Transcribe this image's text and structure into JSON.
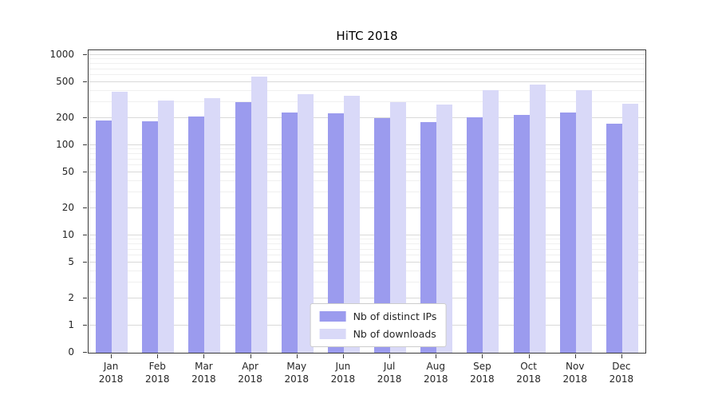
{
  "title": "HiTC 2018",
  "chart_data": {
    "type": "bar",
    "title": "HiTC 2018",
    "y_scale": "symlog",
    "grid": true,
    "legend_position": "lower center",
    "ylim": [
      0,
      1200
    ],
    "y_ticks": [
      0,
      1,
      2,
      5,
      10,
      20,
      50,
      100,
      200,
      500,
      1000
    ],
    "categories": [
      "Jan 2018",
      "Feb 2018",
      "Mar 2018",
      "Apr 2018",
      "May 2018",
      "Jun 2018",
      "Jul 2018",
      "Aug 2018",
      "Sep 2018",
      "Oct 2018",
      "Nov 2018",
      "Dec 2018"
    ],
    "series": [
      {
        "name": "Nb of distinct IPs",
        "color": "#9b9bee",
        "values": [
          190,
          185,
          210,
          300,
          230,
          225,
          200,
          180,
          205,
          215,
          230,
          175
        ]
      },
      {
        "name": "Nb of downloads",
        "color": "#d9d9f8",
        "values": [
          390,
          310,
          330,
          580,
          365,
          355,
          300,
          285,
          410,
          470,
          410,
          290
        ]
      }
    ]
  }
}
